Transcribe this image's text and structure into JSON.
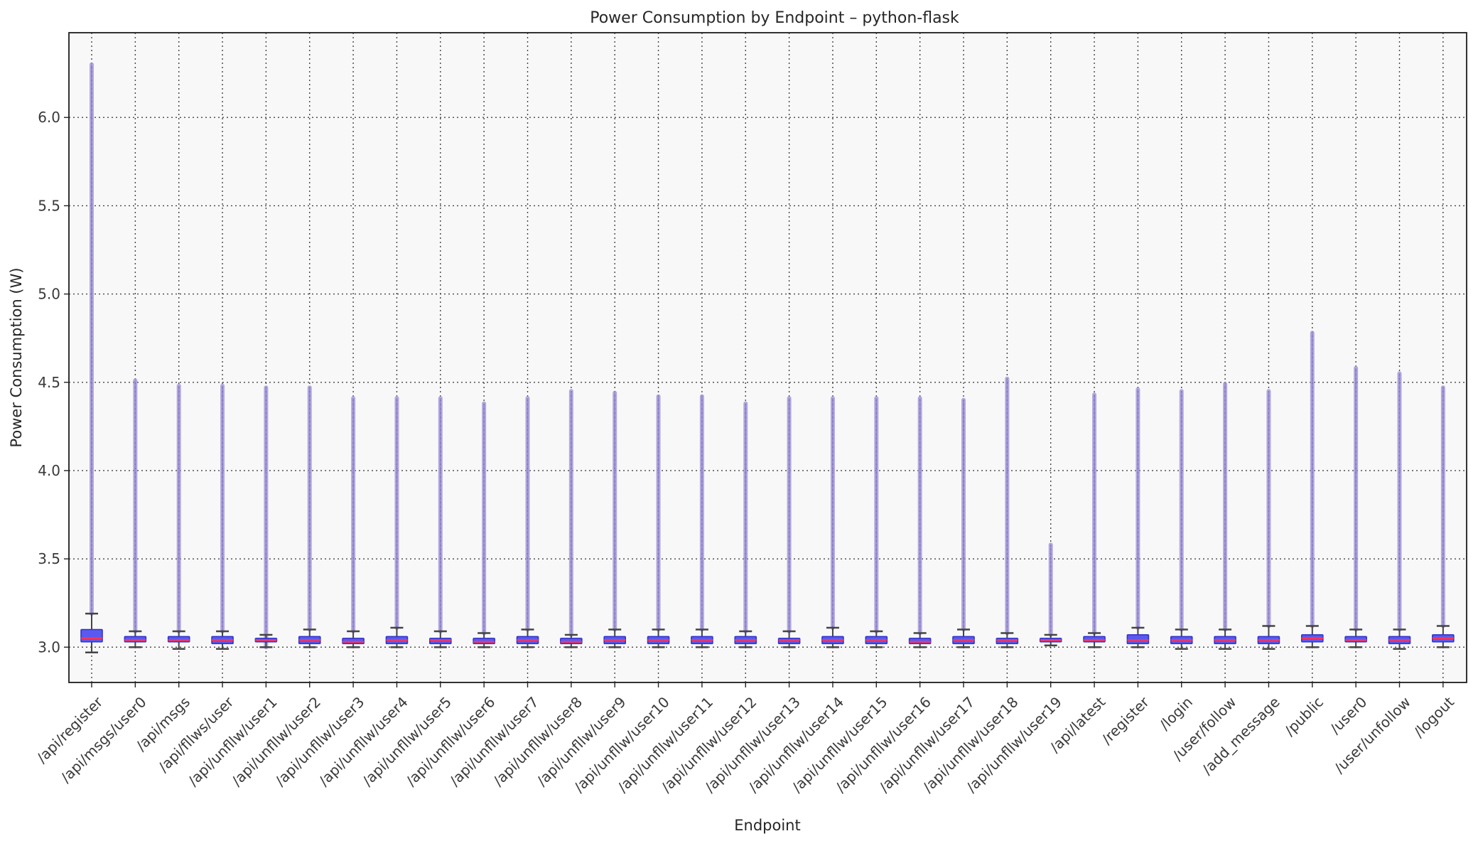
{
  "chart_data": {
    "type": "box",
    "title": "Power Consumption by Endpoint – python-flask",
    "xlabel": "Endpoint",
    "ylabel": "Power Consumption (W)",
    "ylim": [
      2.8,
      6.48
    ],
    "yticks": [
      3.0,
      3.5,
      4.0,
      4.5,
      5.0,
      5.5,
      6.0
    ],
    "grid": true,
    "colors": {
      "box_fill": "#5a5af0",
      "box_edge": "#3333cc",
      "median": "#ff3355",
      "whisker": "#444444",
      "outlier": "#9d8fd6"
    },
    "categories": [
      "/api/register",
      "/api/msgs/user0",
      "/api/msgs",
      "/api/fllws/user",
      "/api/unfllw/user1",
      "/api/unfllw/user2",
      "/api/unfllw/user3",
      "/api/unfllw/user4",
      "/api/unfllw/user5",
      "/api/unfllw/user6",
      "/api/unfllw/user7",
      "/api/unfllw/user8",
      "/api/unfllw/user9",
      "/api/unfllw/user10",
      "/api/unfllw/user11",
      "/api/unfllw/user12",
      "/api/unfllw/user13",
      "/api/unfllw/user14",
      "/api/unfllw/user15",
      "/api/unfllw/user16",
      "/api/unfllw/user17",
      "/api/unfllw/user18",
      "/api/unfllw/user19",
      "/api/latest",
      "/register",
      "/login",
      "/user/follow",
      "/add_message",
      "/public",
      "/user0",
      "/user/unfollow",
      "/logout"
    ],
    "boxes": [
      {
        "whislo": 2.97,
        "q1": 3.03,
        "median": 3.05,
        "q3": 3.1,
        "whishi": 3.19,
        "fliers_max": 6.3,
        "fliers_min": 3.19
      },
      {
        "whislo": 3.0,
        "q1": 3.03,
        "median": 3.04,
        "q3": 3.06,
        "whishi": 3.09,
        "fliers_max": 4.51,
        "fliers_min": 3.09
      },
      {
        "whislo": 2.99,
        "q1": 3.03,
        "median": 3.04,
        "q3": 3.06,
        "whishi": 3.09,
        "fliers_max": 4.48,
        "fliers_min": 3.09
      },
      {
        "whislo": 2.99,
        "q1": 3.02,
        "median": 3.04,
        "q3": 3.06,
        "whishi": 3.09,
        "fliers_max": 4.48,
        "fliers_min": 3.09
      },
      {
        "whislo": 3.0,
        "q1": 3.03,
        "median": 3.04,
        "q3": 3.05,
        "whishi": 3.07,
        "fliers_max": 4.47,
        "fliers_min": 3.0
      },
      {
        "whislo": 3.0,
        "q1": 3.02,
        "median": 3.04,
        "q3": 3.06,
        "whishi": 3.1,
        "fliers_max": 4.47,
        "fliers_min": 3.1
      },
      {
        "whislo": 3.0,
        "q1": 3.02,
        "median": 3.03,
        "q3": 3.05,
        "whishi": 3.09,
        "fliers_max": 4.41,
        "fliers_min": 3.09
      },
      {
        "whislo": 3.0,
        "q1": 3.02,
        "median": 3.04,
        "q3": 3.06,
        "whishi": 3.11,
        "fliers_max": 4.41,
        "fliers_min": 3.11
      },
      {
        "whislo": 3.0,
        "q1": 3.02,
        "median": 3.04,
        "q3": 3.05,
        "whishi": 3.09,
        "fliers_max": 4.41,
        "fliers_min": 3.09
      },
      {
        "whislo": 3.0,
        "q1": 3.02,
        "median": 3.03,
        "q3": 3.05,
        "whishi": 3.08,
        "fliers_max": 4.38,
        "fliers_min": 3.08
      },
      {
        "whislo": 3.0,
        "q1": 3.02,
        "median": 3.04,
        "q3": 3.06,
        "whishi": 3.1,
        "fliers_max": 4.41,
        "fliers_min": 3.1
      },
      {
        "whislo": 3.0,
        "q1": 3.02,
        "median": 3.03,
        "q3": 3.05,
        "whishi": 3.07,
        "fliers_max": 4.45,
        "fliers_min": 3.07
      },
      {
        "whislo": 3.0,
        "q1": 3.02,
        "median": 3.04,
        "q3": 3.06,
        "whishi": 3.1,
        "fliers_max": 4.44,
        "fliers_min": 3.1
      },
      {
        "whislo": 3.0,
        "q1": 3.02,
        "median": 3.04,
        "q3": 3.06,
        "whishi": 3.1,
        "fliers_max": 4.42,
        "fliers_min": 3.1
      },
      {
        "whislo": 3.0,
        "q1": 3.02,
        "median": 3.04,
        "q3": 3.06,
        "whishi": 3.1,
        "fliers_max": 4.42,
        "fliers_min": 3.1
      },
      {
        "whislo": 3.0,
        "q1": 3.02,
        "median": 3.04,
        "q3": 3.06,
        "whishi": 3.09,
        "fliers_max": 4.38,
        "fliers_min": 3.09
      },
      {
        "whislo": 3.0,
        "q1": 3.02,
        "median": 3.04,
        "q3": 3.05,
        "whishi": 3.09,
        "fliers_max": 4.41,
        "fliers_min": 3.09
      },
      {
        "whislo": 3.0,
        "q1": 3.02,
        "median": 3.04,
        "q3": 3.06,
        "whishi": 3.11,
        "fliers_max": 4.41,
        "fliers_min": 3.11
      },
      {
        "whislo": 3.0,
        "q1": 3.02,
        "median": 3.04,
        "q3": 3.06,
        "whishi": 3.09,
        "fliers_max": 4.41,
        "fliers_min": 3.09
      },
      {
        "whislo": 3.0,
        "q1": 3.02,
        "median": 3.03,
        "q3": 3.05,
        "whishi": 3.08,
        "fliers_max": 4.41,
        "fliers_min": 3.08
      },
      {
        "whislo": 3.0,
        "q1": 3.02,
        "median": 3.04,
        "q3": 3.06,
        "whishi": 3.1,
        "fliers_max": 4.4,
        "fliers_min": 3.1
      },
      {
        "whislo": 3.0,
        "q1": 3.02,
        "median": 3.04,
        "q3": 3.05,
        "whishi": 3.08,
        "fliers_max": 4.52,
        "fliers_min": 3.08
      },
      {
        "whislo": 3.01,
        "q1": 3.03,
        "median": 3.04,
        "q3": 3.05,
        "whishi": 3.07,
        "fliers_max": 3.58,
        "fliers_min": 3.07
      },
      {
        "whislo": 3.0,
        "q1": 3.03,
        "median": 3.04,
        "q3": 3.06,
        "whishi": 3.08,
        "fliers_max": 4.43,
        "fliers_min": 3.08
      },
      {
        "whislo": 3.0,
        "q1": 3.02,
        "median": 3.04,
        "q3": 3.07,
        "whishi": 3.11,
        "fliers_max": 4.46,
        "fliers_min": 3.11
      },
      {
        "whislo": 2.99,
        "q1": 3.02,
        "median": 3.04,
        "q3": 3.06,
        "whishi": 3.1,
        "fliers_max": 4.45,
        "fliers_min": 3.1
      },
      {
        "whislo": 2.99,
        "q1": 3.02,
        "median": 3.04,
        "q3": 3.06,
        "whishi": 3.1,
        "fliers_max": 4.49,
        "fliers_min": 3.1
      },
      {
        "whislo": 2.99,
        "q1": 3.02,
        "median": 3.04,
        "q3": 3.06,
        "whishi": 3.12,
        "fliers_max": 4.45,
        "fliers_min": 3.12
      },
      {
        "whislo": 3.0,
        "q1": 3.03,
        "median": 3.05,
        "q3": 3.07,
        "whishi": 3.12,
        "fliers_max": 4.78,
        "fliers_min": 3.12
      },
      {
        "whislo": 3.0,
        "q1": 3.03,
        "median": 3.04,
        "q3": 3.06,
        "whishi": 3.1,
        "fliers_max": 4.58,
        "fliers_min": 3.1
      },
      {
        "whislo": 2.99,
        "q1": 3.02,
        "median": 3.04,
        "q3": 3.06,
        "whishi": 3.1,
        "fliers_max": 4.55,
        "fliers_min": 3.1
      },
      {
        "whislo": 3.0,
        "q1": 3.03,
        "median": 3.05,
        "q3": 3.07,
        "whishi": 3.12,
        "fliers_max": 4.47,
        "fliers_min": 3.12
      }
    ]
  }
}
